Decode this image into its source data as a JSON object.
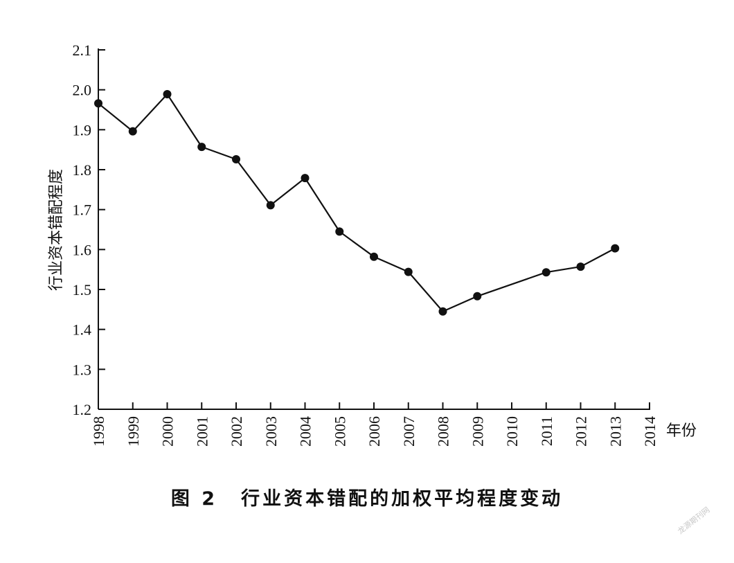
{
  "chart_data": {
    "type": "line",
    "title": "",
    "xlabel": "年份",
    "ylabel": "行业资本错配程度",
    "x_ticks": [
      "1998",
      "1999",
      "2000",
      "2001",
      "2002",
      "2003",
      "2004",
      "2005",
      "2006",
      "2007",
      "2008",
      "2009",
      "2010",
      "2011",
      "2012",
      "2013",
      "2014"
    ],
    "y_ticks": [
      "1.2",
      "1.3",
      "1.4",
      "1.5",
      "1.6",
      "1.7",
      "1.8",
      "1.9",
      "2.0",
      "2.1"
    ],
    "xlim": [
      1998,
      2014
    ],
    "ylim": [
      1.2,
      2.1
    ],
    "grid": false,
    "series": [
      {
        "x": [
          1998,
          1999,
          2000,
          2001,
          2002,
          2003,
          2004,
          2005,
          2006,
          2007,
          2008,
          2009,
          2011,
          2012,
          2013
        ],
        "values": [
          1.966,
          1.896,
          1.989,
          1.857,
          1.826,
          1.711,
          1.779,
          1.645,
          1.582,
          1.544,
          1.445,
          1.483,
          1.543,
          1.557,
          1.603
        ],
        "color": "#111111",
        "marker": "circle"
      }
    ]
  },
  "caption": {
    "figure_number": "图 2",
    "text": "行业资本错配的加权平均程度变动"
  },
  "watermark": "龙源期刊网"
}
